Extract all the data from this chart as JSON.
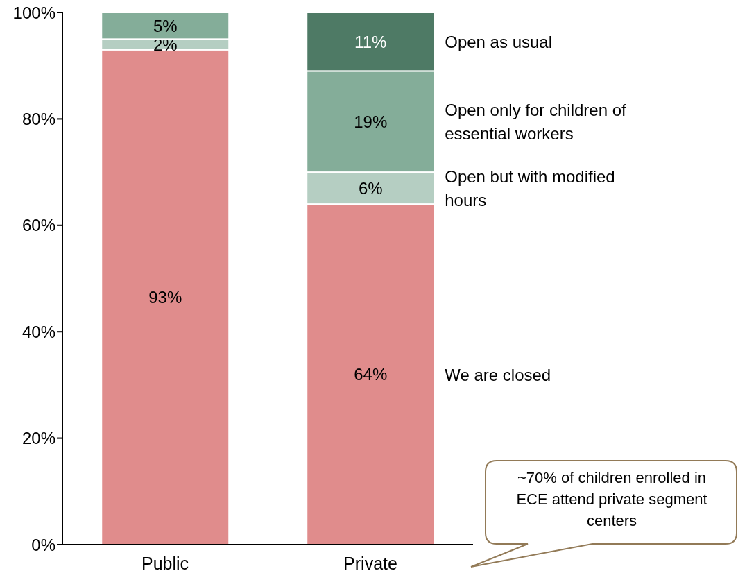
{
  "chart_data": {
    "type": "bar",
    "stacked": true,
    "categories": [
      "Public",
      "Private"
    ],
    "series": [
      {
        "name": "We are closed",
        "color": "#e08c8c",
        "values": [
          93,
          64
        ],
        "value_labels": [
          "93%",
          "64%"
        ]
      },
      {
        "name": "Open but with modified hours",
        "color": "#b5cec2",
        "values": [
          2,
          6
        ],
        "value_labels": [
          "2%",
          "6%"
        ]
      },
      {
        "name": "Open only for children of essential workers",
        "color": "#84ad99",
        "values": [
          5,
          19
        ],
        "value_labels": [
          "5%",
          "19%"
        ]
      },
      {
        "name": "Open as usual",
        "color": "#4e7a65",
        "values": [
          0,
          11
        ],
        "value_labels": [
          null,
          "11%"
        ]
      }
    ],
    "ylim": [
      0,
      100
    ],
    "yticks": [
      {
        "value": 0,
        "label": "0%"
      },
      {
        "value": 20,
        "label": "20%"
      },
      {
        "value": 40,
        "label": "40%"
      },
      {
        "value": 60,
        "label": "60%"
      },
      {
        "value": 80,
        "label": "80%"
      },
      {
        "value": 100,
        "label": "100%"
      }
    ],
    "grid": false,
    "legend": false,
    "annotations": [
      "~70% of children enrolled in ECE attend private segment centers"
    ]
  }
}
